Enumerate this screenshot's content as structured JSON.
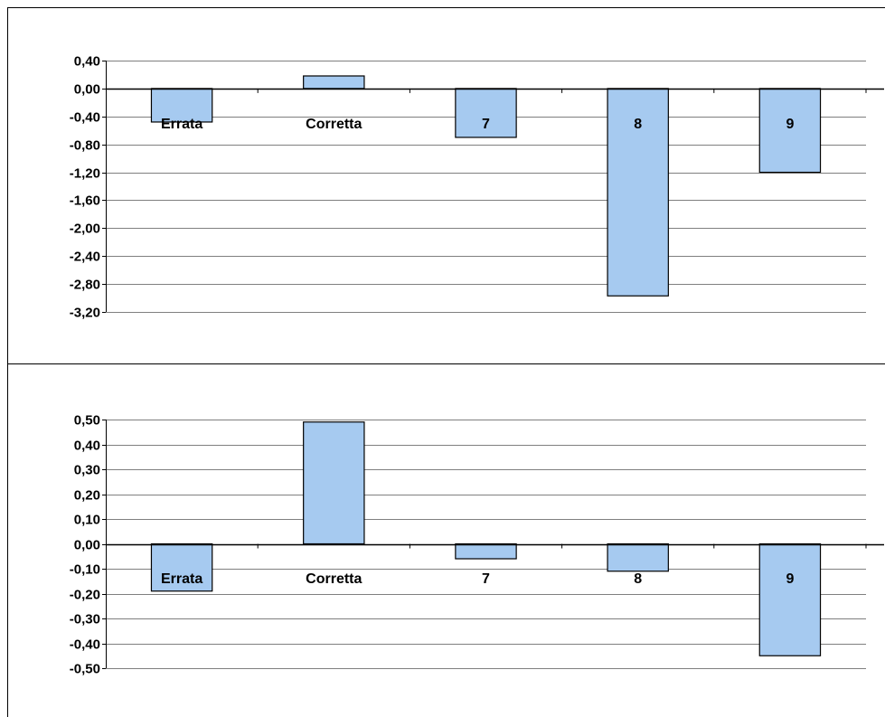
{
  "colors": {
    "bar_fill": "#a6caf0",
    "bar_stroke": "#000000",
    "gridline": "#000000",
    "frame": "#000000",
    "background": "#ffffff"
  },
  "chart_data": [
    {
      "type": "bar",
      "title": "",
      "xlabel": "",
      "ylabel": "",
      "categories": [
        "Errata",
        "Corretta",
        "7",
        "8",
        "9"
      ],
      "values": [
        -0.48,
        0.18,
        -0.7,
        -2.97,
        -1.2
      ],
      "ylim": [
        -3.2,
        0.4
      ],
      "yticks": [
        0.4,
        0.0,
        -0.4,
        -0.8,
        -1.2,
        -1.6,
        -2.0,
        -2.4,
        -2.8,
        -3.2
      ],
      "ytick_labels": [
        "0,40",
        "0,00",
        "-0,40",
        "-0,80",
        "-1,20",
        "-1,60",
        "-2,00",
        "-2,40",
        "-2,80",
        "-3,20"
      ],
      "grid": true,
      "legend": "none"
    },
    {
      "type": "bar",
      "title": "",
      "xlabel": "",
      "ylabel": "",
      "categories": [
        "Errata",
        "Corretta",
        "7",
        "8",
        "9"
      ],
      "values": [
        -0.19,
        0.49,
        -0.06,
        -0.11,
        -0.45
      ],
      "ylim": [
        -0.5,
        0.5
      ],
      "yticks": [
        0.5,
        0.4,
        0.3,
        0.2,
        0.1,
        0.0,
        -0.1,
        -0.2,
        -0.3,
        -0.4,
        -0.5
      ],
      "ytick_labels": [
        "0,50",
        "0,40",
        "0,30",
        "0,20",
        "0,10",
        "0,00",
        "-0,10",
        "-0,20",
        "-0,30",
        "-0,40",
        "-0,50"
      ],
      "grid": true,
      "legend": "none"
    }
  ]
}
